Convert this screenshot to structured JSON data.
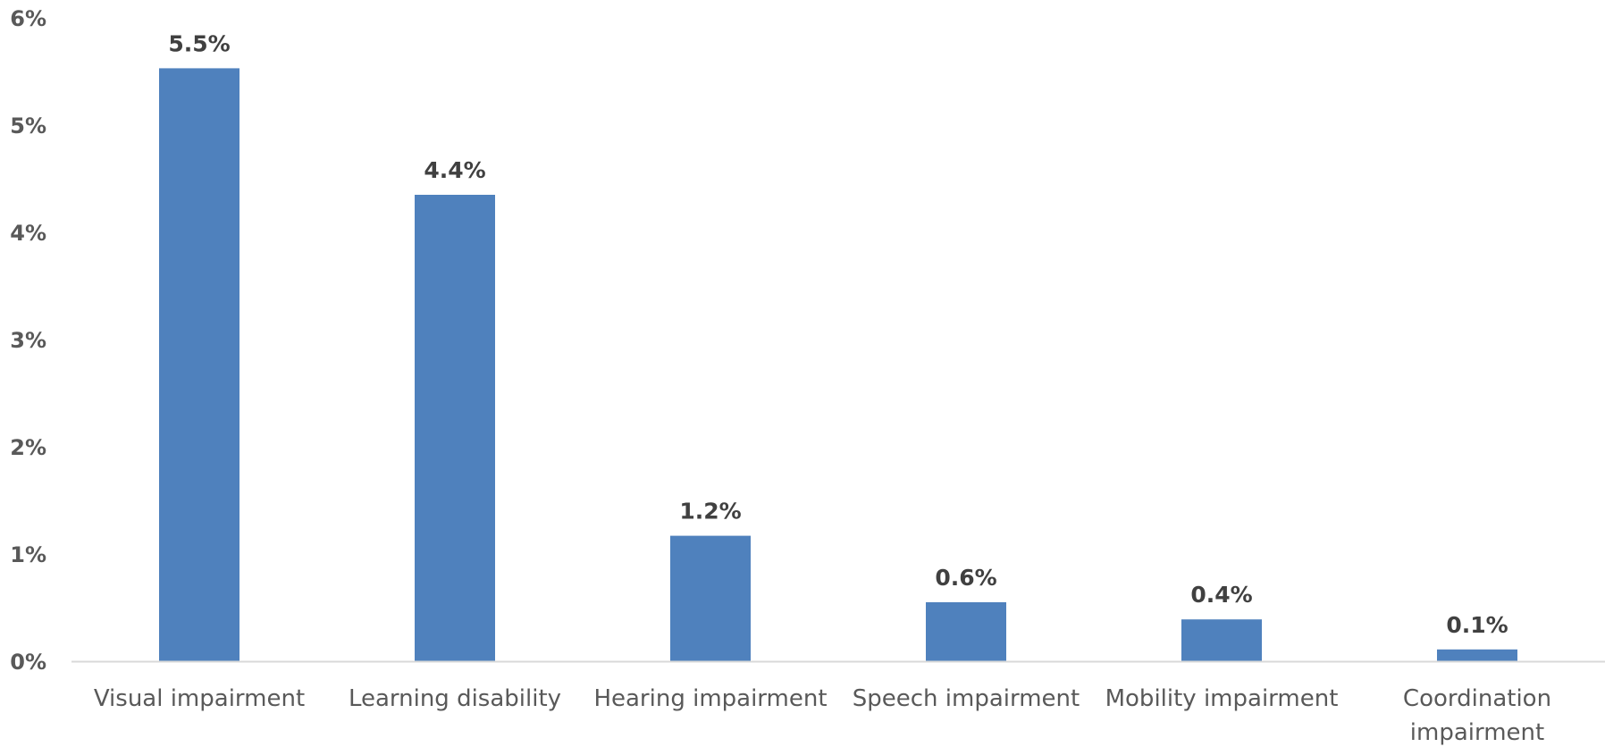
{
  "chart_data": {
    "type": "bar",
    "categories": [
      "Visual impairment",
      "Learning disability",
      "Hearing impairment",
      "Speech impairment",
      "Mobility impairment",
      "Coordination impairment"
    ],
    "category_lines": [
      [
        "Visual impairment"
      ],
      [
        "Learning disability"
      ],
      [
        "Hearing impairment"
      ],
      [
        "Speech impairment"
      ],
      [
        "Mobility impairment"
      ],
      [
        "Coordination",
        "impairment"
      ]
    ],
    "values": [
      5.53,
      4.35,
      1.17,
      0.55,
      0.39,
      0.11
    ],
    "data_labels": [
      "5.5%",
      "4.4%",
      "1.2%",
      "0.6%",
      "0.4%",
      "0.1%"
    ],
    "y_ticks": [
      0,
      1,
      2,
      3,
      4,
      5,
      6
    ],
    "y_tick_labels": [
      "0%",
      "1%",
      "2%",
      "3%",
      "4%",
      "5%",
      "6%"
    ],
    "ylim": [
      0,
      6
    ],
    "title": "",
    "xlabel": "",
    "ylabel": "",
    "grid": false,
    "legend": "none",
    "bar_color": "#4f81bd",
    "axis_color": "#d9d9d9"
  }
}
